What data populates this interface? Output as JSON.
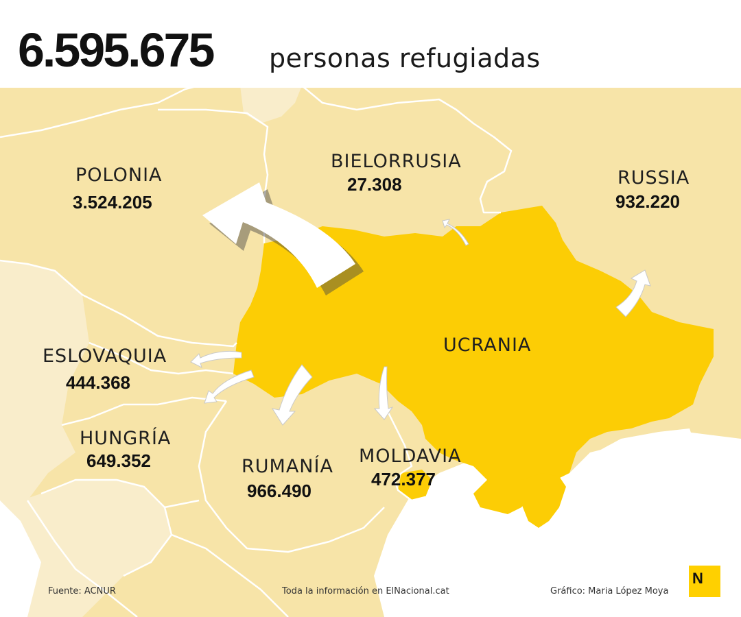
{
  "headline": {
    "number": "6.595.675",
    "text": "personas refugiadas"
  },
  "countries": {
    "polonia": {
      "name": "POLONIA",
      "value": "3.524.205"
    },
    "bielorrusia": {
      "name": "BIELORRUSIA",
      "value": "27.308"
    },
    "russia": {
      "name": "RUSSIA",
      "value": "932.220"
    },
    "ucrania": {
      "name": "UCRANIA"
    },
    "eslovaquia": {
      "name": "ESLOVAQUIA",
      "value": "444.368"
    },
    "hungria": {
      "name": "HUNGRÍA",
      "value": "649.352"
    },
    "rumania": {
      "name": "RUMANÍA",
      "value": "966.490"
    },
    "moldavia": {
      "name": "MOLDAVIA",
      "value": "472.377"
    }
  },
  "footer": {
    "source": "Fuente: ACNUR",
    "info": "Toda la información en ElNacional.cat",
    "credit": "Gráfico: Maria López Moya"
  },
  "logo": {
    "letter": "N"
  },
  "colors": {
    "ukraine": "#fccd05",
    "neighbors": "#f7e4a8",
    "distant": "#f9edcb",
    "sea": "#ffffff",
    "border": "#ffffff",
    "logo": "#ffd000"
  },
  "icons": {
    "flow_arrow": "arrow-icon",
    "brand": "elnacional-logo"
  }
}
